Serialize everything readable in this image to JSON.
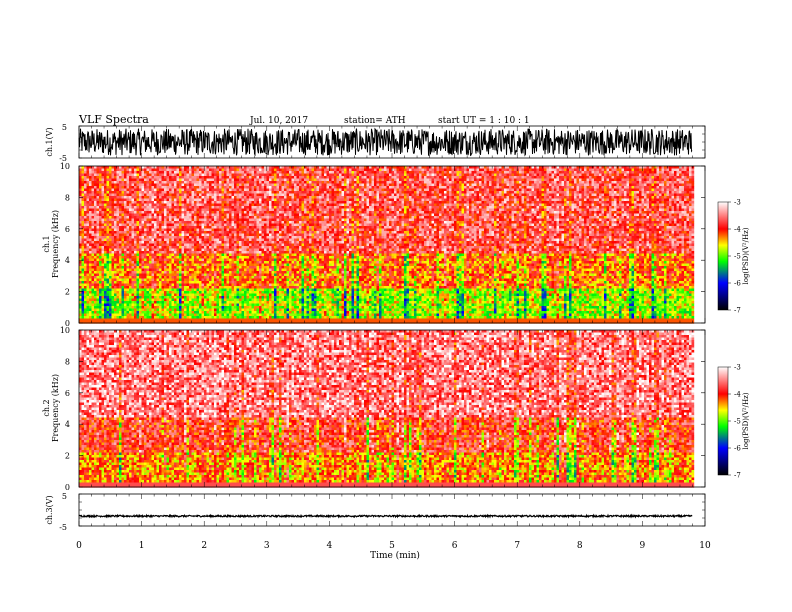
{
  "header": {
    "title": "VLF  Spectra",
    "date": "Jul.  10,  2017",
    "station": "station= ATH",
    "start": "start  UT  =    1  : 10 : 1"
  },
  "chart_data": [
    {
      "type": "line",
      "panel": "ch1-waveform",
      "ylabel": "ch.1(V)",
      "ylim": [
        -5,
        5
      ],
      "yticks": [
        "5",
        "-5"
      ],
      "xlim": [
        0,
        10
      ],
      "baseline": 0,
      "amplitude": 4.2
    },
    {
      "type": "heatmap",
      "panel": "ch1-spectrogram",
      "ylabel": "ch.1\nFrequency  (kHz)",
      "ylim": [
        0,
        10
      ],
      "yticks": [
        "0",
        "2",
        "4",
        "6",
        "8",
        "10"
      ],
      "xlim": [
        0,
        10
      ],
      "data_end_min": 9.8,
      "colorbar": {
        "label": "log(PSD)(V²/Hz)",
        "range": [
          -7,
          -3
        ],
        "ticks": [
          "-3",
          "-4",
          "-5",
          "-6",
          "-7"
        ]
      },
      "intensity_profile": [
        {
          "freq_khz": [
            0,
            2.2
          ],
          "log_psd": -4.8
        },
        {
          "freq_khz": [
            2.2,
            4.5
          ],
          "log_psd": -4.2
        },
        {
          "freq_khz": [
            4.5,
            10
          ],
          "log_psd": -3.7
        }
      ]
    },
    {
      "type": "heatmap",
      "panel": "ch2-spectrogram",
      "ylabel": "ch.2\nFrequency  (kHz)",
      "ylim": [
        0,
        10
      ],
      "yticks": [
        "0",
        "2",
        "4",
        "6",
        "8",
        "10"
      ],
      "xlim": [
        0,
        10
      ],
      "data_end_min": 9.8,
      "colorbar": {
        "label": "log(PSD)(V²/Hz)",
        "range": [
          -7,
          -3
        ],
        "ticks": [
          "-3",
          "-4",
          "-5",
          "-6",
          "-7"
        ]
      },
      "intensity_profile": [
        {
          "freq_khz": [
            0,
            2.2
          ],
          "log_psd": -4.3
        },
        {
          "freq_khz": [
            2.2,
            4.5
          ],
          "log_psd": -3.9
        },
        {
          "freq_khz": [
            4.5,
            10
          ],
          "log_psd": -3.5
        }
      ]
    },
    {
      "type": "line",
      "panel": "ch3-waveform",
      "ylabel": "ch.3(V)",
      "ylim": [
        -5,
        5
      ],
      "yticks": [
        "5",
        "-5"
      ],
      "xlim": [
        0,
        10
      ],
      "baseline": -1.9,
      "amplitude": 0.25
    }
  ],
  "xaxis": {
    "label": "Time  (min)",
    "ticks": [
      "0",
      "1",
      "2",
      "3",
      "4",
      "5",
      "6",
      "7",
      "8",
      "9",
      "10"
    ]
  },
  "colors": {
    "colormap": [
      "#000000",
      "#0000ff",
      "#00ff00",
      "#ffff00",
      "#ff0000",
      "#ffffff"
    ]
  }
}
